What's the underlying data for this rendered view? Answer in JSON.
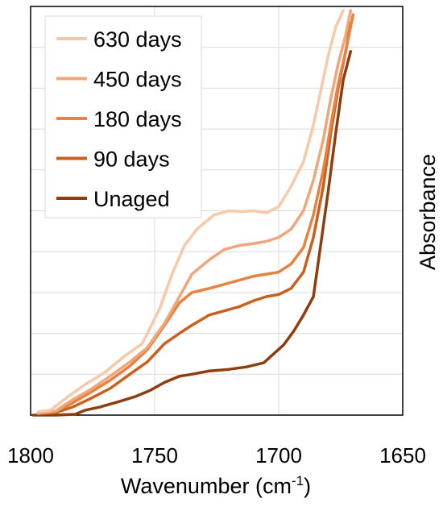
{
  "chart_data": {
    "type": "line",
    "title": "",
    "xlabel_main": "Wavenumber (cm",
    "xlabel_sup": "-1",
    "xlabel_end": ")",
    "ylabel": "Absorbance",
    "xlim": [
      1800,
      1650
    ],
    "ylim": [
      0,
      10
    ],
    "x_ticks": [
      1800,
      1750,
      1700,
      1650
    ],
    "x_tick_labels": [
      "1800",
      "1750",
      "1700",
      "1650"
    ],
    "x_grid": [
      1750,
      1700
    ],
    "y_grid": [
      1,
      2,
      3,
      4,
      5,
      6,
      7,
      8,
      9
    ],
    "grid": true,
    "legend_position": "top-left",
    "series": [
      {
        "name": "630 days",
        "color": "#F6C9A8",
        "x": [
          1797,
          1792,
          1785,
          1778,
          1770,
          1762,
          1755,
          1748,
          1743,
          1738,
          1733,
          1726,
          1720,
          1715,
          1710,
          1705,
          1700,
          1695,
          1690,
          1686,
          1683,
          1680,
          1677,
          1674
        ],
        "y": [
          0.08,
          0.12,
          0.45,
          0.75,
          1.05,
          1.45,
          1.75,
          2.6,
          3.45,
          4.15,
          4.55,
          4.9,
          5.0,
          4.98,
          5.0,
          4.95,
          5.1,
          5.6,
          6.2,
          7.1,
          7.95,
          8.8,
          9.5,
          9.9
        ]
      },
      {
        "name": "450 days",
        "color": "#EFA67B",
        "x": [
          1797,
          1790,
          1783,
          1776,
          1768,
          1760,
          1753,
          1746,
          1740,
          1735,
          1728,
          1722,
          1716,
          1710,
          1705,
          1700,
          1695,
          1690,
          1686,
          1682,
          1679,
          1676,
          1673,
          1671
        ],
        "y": [
          0.05,
          0.1,
          0.38,
          0.62,
          0.95,
          1.3,
          1.65,
          2.25,
          2.9,
          3.45,
          3.8,
          4.05,
          4.15,
          4.2,
          4.25,
          4.35,
          4.55,
          5.0,
          5.75,
          6.75,
          7.75,
          8.6,
          9.3,
          9.9
        ]
      },
      {
        "name": "180 days",
        "color": "#E88240",
        "x": [
          1797,
          1790,
          1783,
          1776,
          1768,
          1760,
          1753,
          1746,
          1740,
          1735,
          1728,
          1722,
          1716,
          1710,
          1705,
          1700,
          1695,
          1690,
          1686,
          1682,
          1679,
          1676,
          1673,
          1670
        ],
        "y": [
          0.04,
          0.08,
          0.3,
          0.55,
          0.85,
          1.2,
          1.6,
          2.2,
          2.75,
          3.0,
          3.1,
          3.2,
          3.3,
          3.4,
          3.45,
          3.5,
          3.7,
          4.1,
          4.9,
          6.0,
          7.1,
          8.1,
          8.9,
          9.8
        ]
      },
      {
        "name": "90 days",
        "color": "#C9601E",
        "x": [
          1797,
          1790,
          1783,
          1776,
          1768,
          1760,
          1753,
          1746,
          1740,
          1735,
          1728,
          1722,
          1716,
          1710,
          1705,
          1700,
          1695,
          1690,
          1686,
          1682,
          1679,
          1676,
          1673,
          1671
        ],
        "y": [
          0.04,
          0.06,
          0.2,
          0.4,
          0.65,
          1.0,
          1.3,
          1.75,
          2.0,
          2.2,
          2.45,
          2.55,
          2.65,
          2.8,
          2.9,
          2.95,
          3.1,
          3.5,
          4.35,
          5.6,
          6.9,
          8.0,
          8.9,
          9.6
        ]
      },
      {
        "name": "Unaged",
        "color": "#8E3E0E",
        "x": [
          1799,
          1790,
          1782,
          1778,
          1772,
          1765,
          1758,
          1752,
          1746,
          1740,
          1735,
          1728,
          1720,
          1713,
          1706,
          1702,
          1698,
          1694,
          1690,
          1686,
          1683,
          1680,
          1677,
          1674,
          1671
        ],
        "y": [
          0.0,
          0.0,
          0.02,
          0.12,
          0.2,
          0.32,
          0.45,
          0.6,
          0.8,
          0.95,
          1.0,
          1.08,
          1.12,
          1.18,
          1.28,
          1.5,
          1.72,
          2.05,
          2.45,
          2.9,
          4.2,
          5.5,
          6.9,
          8.2,
          8.9
        ]
      }
    ]
  }
}
